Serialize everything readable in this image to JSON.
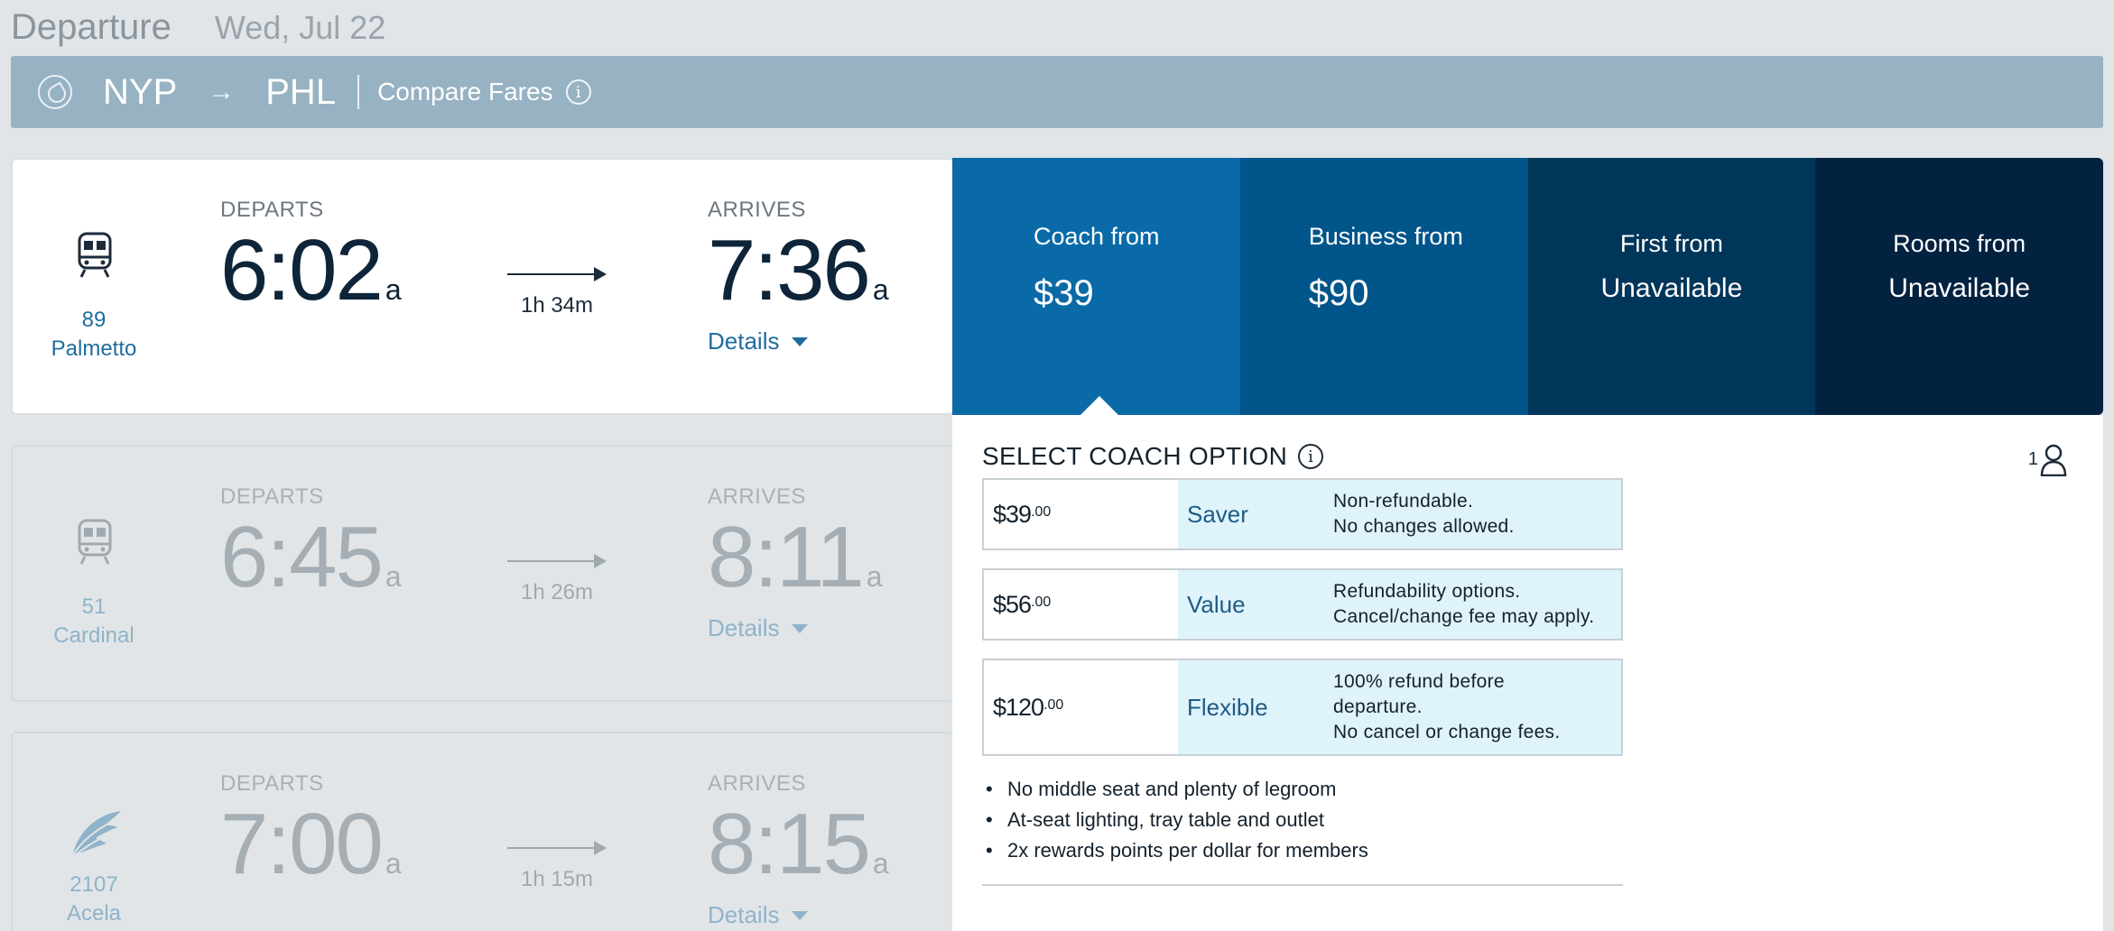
{
  "header": {
    "title": "Departure",
    "date": "Wed, Jul 22"
  },
  "route": {
    "origin": "NYP",
    "arrow": "→",
    "destination": "PHL",
    "compare": "Compare Fares",
    "info": "i"
  },
  "trains": [
    {
      "number": "89",
      "name": "Palmetto",
      "departs_label": "DEPARTS",
      "departs": "6:02",
      "departs_ampm": "a",
      "duration": "1h 34m",
      "arrives_label": "ARRIVES",
      "arrives": "7:36",
      "arrives_ampm": "a",
      "details": "Details",
      "icon": "train-icon"
    },
    {
      "number": "51",
      "name": "Cardinal",
      "departs_label": "DEPARTS",
      "departs": "6:45",
      "departs_ampm": "a",
      "duration": "1h 26m",
      "arrives_label": "ARRIVES",
      "arrives": "8:11",
      "arrives_ampm": "a",
      "details": "Details",
      "icon": "train-icon"
    },
    {
      "number": "2107",
      "name": "Acela",
      "departs_label": "DEPARTS",
      "departs": "7:00",
      "departs_ampm": "a",
      "duration": "1h 15m",
      "arrives_label": "ARRIVES",
      "arrives": "8:15",
      "arrives_ampm": "a",
      "details": "Details",
      "icon": "acela-wing-icon"
    }
  ],
  "fares": {
    "coach": {
      "name": "Coach from",
      "price": "$39"
    },
    "business": {
      "name": "Business from",
      "price": "$90"
    },
    "first": {
      "name": "First from",
      "price": "Unavailable"
    },
    "rooms": {
      "name": "Rooms from",
      "price": "Unavailable"
    }
  },
  "coach_options": {
    "title": "SELECT COACH OPTION",
    "info": "i",
    "passengers": "1",
    "options": [
      {
        "price": "$39",
        "cents": ".00",
        "name": "Saver",
        "desc1": "Non-refundable.",
        "desc2": "No changes allowed.",
        "desc3": ""
      },
      {
        "price": "$56",
        "cents": ".00",
        "name": "Value",
        "desc1": "Refundability options.",
        "desc2": "Cancel/change fee may apply.",
        "desc3": ""
      },
      {
        "price": "$120",
        "cents": ".00",
        "name": "Flexible",
        "desc1": "100% refund before",
        "desc2": "departure.",
        "desc3": "No cancel or change fees."
      }
    ],
    "perks": [
      "No middle seat and plenty of legroom",
      "At-seat lighting, tray table and outlet",
      "2x rewards points per dollar for members"
    ]
  },
  "colors": {
    "coach": "#0a6aa8",
    "business": "#00558a",
    "first": "#00365a",
    "rooms": "#03223f",
    "route_bar": "#97b2c3",
    "option_bg": "#dff3fb"
  }
}
